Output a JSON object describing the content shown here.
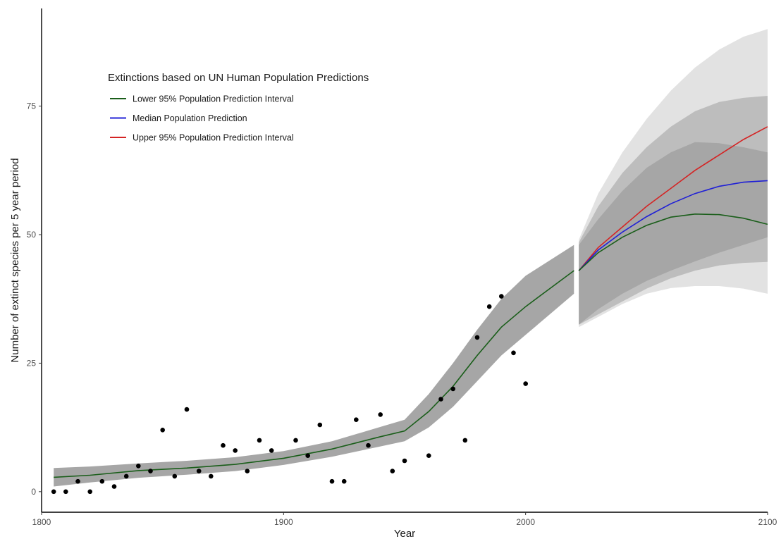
{
  "chart_data": {
    "type": "line",
    "title": "",
    "xlabel": "Year",
    "ylabel": "Number of extinct species per 5 year period",
    "xlim": [
      1800,
      2100
    ],
    "ylim": [
      -4,
      94
    ],
    "x_ticks": [
      1800,
      1900,
      2000,
      2100
    ],
    "y_ticks": [
      0,
      25,
      50,
      75
    ],
    "grid": false,
    "legend": {
      "title": "Extinctions based on UN Human Population Predictions",
      "placement": "top-left",
      "entries": [
        {
          "label": "Lower 95% Population Prediction Interval",
          "color": "#1a5e1a"
        },
        {
          "label": "Median Population Prediction",
          "color": "#1f1fd6"
        },
        {
          "label": "Upper 95% Population Prediction Interval",
          "color": "#d42424"
        }
      ]
    },
    "observed_points": {
      "x": [
        1805,
        1810,
        1815,
        1820,
        1825,
        1830,
        1835,
        1840,
        1845,
        1850,
        1855,
        1860,
        1865,
        1870,
        1875,
        1880,
        1885,
        1890,
        1895,
        1905,
        1910,
        1915,
        1920,
        1925,
        1930,
        1935,
        1940,
        1945,
        1950,
        1960,
        1965,
        1970,
        1975,
        1980,
        1985,
        1990,
        1995,
        2000
      ],
      "y": [
        0,
        0,
        2,
        0,
        2,
        1,
        3,
        5,
        4,
        12,
        3,
        16,
        4,
        3,
        9,
        8,
        4,
        10,
        8,
        10,
        7,
        13,
        2,
        2,
        14,
        9,
        15,
        4,
        6,
        7,
        18,
        20,
        10,
        30,
        36,
        38,
        27,
        21
      ],
      "color": "#000000"
    },
    "fitted": {
      "x": [
        1805,
        1820,
        1840,
        1860,
        1880,
        1900,
        1920,
        1940,
        1950,
        1960,
        1970,
        1980,
        1990,
        2000,
        2010,
        2020
      ],
      "y": [
        2.8,
        3.2,
        4.1,
        4.6,
        5.3,
        6.5,
        8.3,
        10.7,
        11.8,
        15.6,
        20.5,
        26.5,
        32.0,
        36.0,
        39.5,
        43.0
      ],
      "band_lower": [
        1.0,
        1.8,
        2.7,
        3.3,
        4.0,
        5.2,
        6.8,
        8.8,
        9.8,
        12.5,
        16.5,
        21.5,
        26.5,
        30.5,
        34.5,
        38.5
      ],
      "band_upper": [
        4.6,
        4.9,
        5.5,
        6.0,
        6.7,
        7.9,
        9.8,
        12.6,
        14.0,
        19.0,
        25.0,
        31.5,
        37.5,
        42.0,
        45.0,
        48.0
      ],
      "color": "#1a5e1a"
    },
    "series": [
      {
        "name": "Lower 95% Population Prediction Interval",
        "color": "#1a5e1a",
        "x": [
          2022,
          2030,
          2040,
          2050,
          2060,
          2070,
          2080,
          2090,
          2100
        ],
        "y": [
          43.0,
          46.5,
          49.5,
          51.8,
          53.4,
          54.0,
          53.9,
          53.2,
          52.0
        ]
      },
      {
        "name": "Median Population Prediction",
        "color": "#1f1fd6",
        "x": [
          2022,
          2030,
          2040,
          2050,
          2060,
          2070,
          2080,
          2090,
          2100
        ],
        "y": [
          43.0,
          47.0,
          50.5,
          53.5,
          56.0,
          58.0,
          59.4,
          60.2,
          60.5
        ]
      },
      {
        "name": "Upper 95% Population Prediction Interval",
        "color": "#d42424",
        "x": [
          2022,
          2030,
          2040,
          2050,
          2060,
          2070,
          2080,
          2090,
          2100
        ],
        "y": [
          43.0,
          47.5,
          51.5,
          55.5,
          59.0,
          62.5,
          65.5,
          68.5,
          71.0
        ]
      }
    ],
    "prediction_bands": [
      {
        "name": "inner",
        "color": "#a6a6a6",
        "x": [
          2022,
          2030,
          2040,
          2050,
          2060,
          2070,
          2080,
          2090,
          2100
        ],
        "lower": [
          32.5,
          35.5,
          38.5,
          41.0,
          43.0,
          44.8,
          46.5,
          48.0,
          49.5
        ],
        "upper": [
          48.0,
          53.0,
          58.5,
          63.0,
          66.0,
          68.0,
          67.8,
          67.0,
          66.0
        ]
      },
      {
        "name": "middle",
        "color": "#bdbdbd",
        "x": [
          2022,
          2030,
          2040,
          2050,
          2060,
          2070,
          2080,
          2090,
          2100
        ],
        "lower": [
          32.5,
          34.5,
          37.0,
          39.5,
          41.5,
          43.0,
          44.0,
          44.5,
          44.7
        ],
        "upper": [
          48.5,
          55.5,
          62.0,
          67.0,
          71.0,
          74.0,
          75.8,
          76.6,
          77.0
        ]
      },
      {
        "name": "outer",
        "color": "#e2e2e2",
        "x": [
          2022,
          2030,
          2040,
          2050,
          2060,
          2070,
          2080,
          2090,
          2100
        ],
        "lower": [
          32.0,
          34.0,
          36.5,
          38.5,
          39.6,
          40.0,
          40.0,
          39.5,
          38.5
        ],
        "upper": [
          49.0,
          58.0,
          66.0,
          72.5,
          78.0,
          82.5,
          86.0,
          88.5,
          90.0
        ]
      }
    ]
  }
}
